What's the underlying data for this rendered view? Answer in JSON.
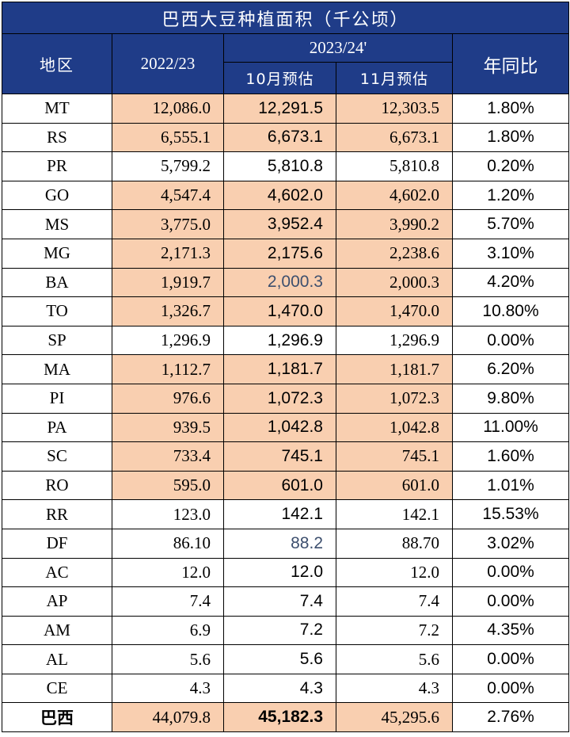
{
  "title": "巴西大豆种植面积（千公顷）",
  "header": {
    "region": "地区",
    "season_prev": "2022/23",
    "season_curr": "2023/24'",
    "est_oct": "10月预估",
    "est_nov": "11月预估",
    "yoy": "年同比"
  },
  "colors": {
    "header_bg": "#1f3c88",
    "highlight": "#f9cfb0",
    "muted_value": "#3d4f6e"
  },
  "rows": [
    {
      "region": "MT",
      "prev": "12,086.0",
      "oct": "12,291.5",
      "nov": "12,303.5",
      "yoy": "1.80%"
    },
    {
      "region": "RS",
      "prev": "6,555.1",
      "oct": "6,673.1",
      "nov": "6,673.1",
      "yoy": "1.80%"
    },
    {
      "region": "PR",
      "prev": "5,799.2",
      "oct": "5,810.8",
      "nov": "5,810.8",
      "yoy": "0.20%"
    },
    {
      "region": "GO",
      "prev": "4,547.4",
      "oct": "4,602.0",
      "nov": "4,602.0",
      "yoy": "1.20%"
    },
    {
      "region": "MS",
      "prev": "3,775.0",
      "oct": "3,952.4",
      "nov": "3,990.2",
      "yoy": "5.70%"
    },
    {
      "region": "MG",
      "prev": "2,171.3",
      "oct": "2,175.6",
      "nov": "2,238.6",
      "yoy": "3.10%"
    },
    {
      "region": "BA",
      "prev": "1,919.7",
      "oct": "2,000.3",
      "nov": "2,000.3",
      "yoy": "4.20%"
    },
    {
      "region": "TO",
      "prev": "1,326.7",
      "oct": "1,470.0",
      "nov": "1,470.0",
      "yoy": "10.80%"
    },
    {
      "region": "SP",
      "prev": "1,296.9",
      "oct": "1,296.9",
      "nov": "1,296.9",
      "yoy": "0.00%"
    },
    {
      "region": "MA",
      "prev": "1,112.7",
      "oct": "1,181.7",
      "nov": "1,181.7",
      "yoy": "6.20%"
    },
    {
      "region": "PI",
      "prev": "976.6",
      "oct": "1,072.3",
      "nov": "1,072.3",
      "yoy": "9.80%"
    },
    {
      "region": "PA",
      "prev": "939.5",
      "oct": "1,042.8",
      "nov": "1,042.8",
      "yoy": "11.00%"
    },
    {
      "region": "SC",
      "prev": "733.4",
      "oct": "745.1",
      "nov": "745.1",
      "yoy": "1.60%"
    },
    {
      "region": "RO",
      "prev": "595.0",
      "oct": "601.0",
      "nov": "601.0",
      "yoy": "1.01%"
    },
    {
      "region": "RR",
      "prev": "123.0",
      "oct": "142.1",
      "nov": "142.1",
      "yoy": "15.53%"
    },
    {
      "region": "DF",
      "prev": "86.10",
      "oct": "88.2",
      "nov": "88.70",
      "yoy": "3.02%"
    },
    {
      "region": "AC",
      "prev": "12.0",
      "oct": "12.0",
      "nov": "12.0",
      "yoy": "0.00%"
    },
    {
      "region": "AP",
      "prev": "7.4",
      "oct": "7.4",
      "nov": "7.4",
      "yoy": "0.00%"
    },
    {
      "region": "AM",
      "prev": "6.9",
      "oct": "7.2",
      "nov": "7.2",
      "yoy": "4.35%"
    },
    {
      "region": "AL",
      "prev": "5.6",
      "oct": "5.6",
      "nov": "5.6",
      "yoy": "0.00%"
    },
    {
      "region": "CE",
      "prev": "4.3",
      "oct": "4.3",
      "nov": "4.3",
      "yoy": "0.00%"
    }
  ],
  "total": {
    "region": "巴西",
    "prev": "44,079.8",
    "oct": "45,182.3",
    "nov": "45,295.6",
    "yoy": "2.76%"
  }
}
